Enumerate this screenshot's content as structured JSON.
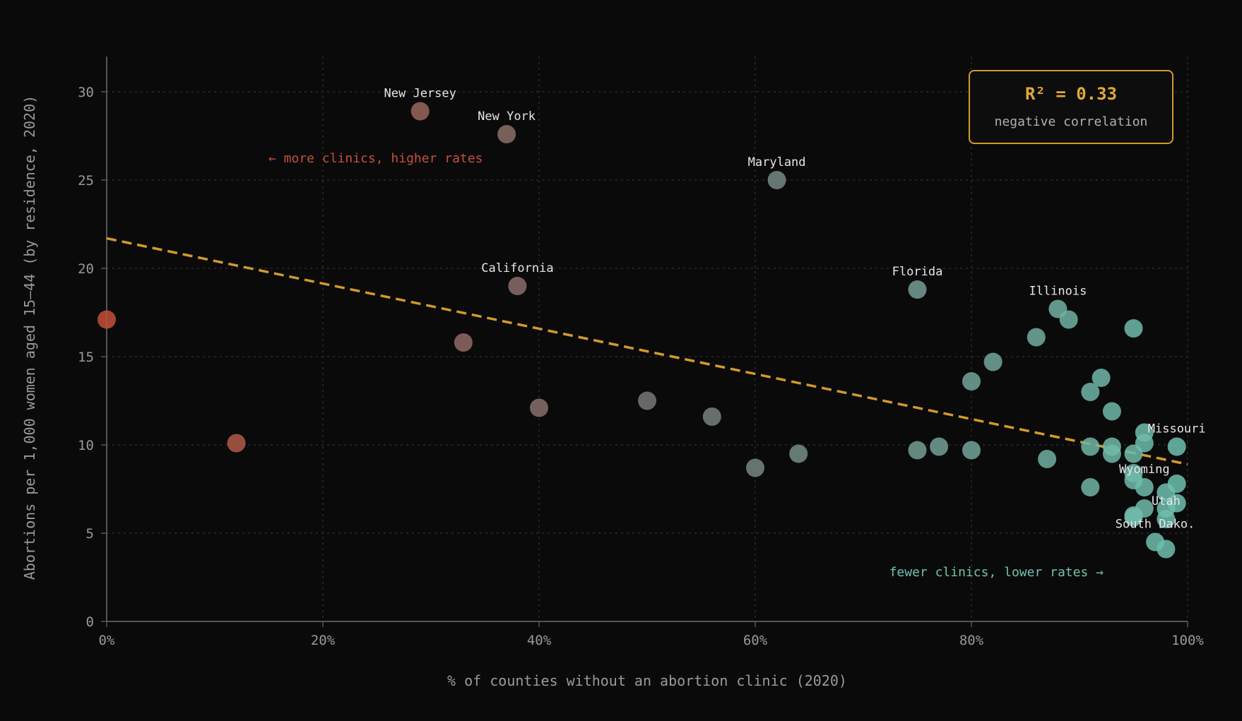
{
  "chart_data": {
    "type": "scatter",
    "xlabel": "% of counties without an abortion clinic (2020)",
    "ylabel": "Abortions per 1,000 women aged 15–44 (by residence, 2020)",
    "xlim": [
      0,
      100
    ],
    "ylim": [
      0,
      32
    ],
    "x_ticks": [
      0,
      20,
      40,
      60,
      80,
      100
    ],
    "x_tick_labels": [
      "0%",
      "20%",
      "40%",
      "60%",
      "80%",
      "100%"
    ],
    "y_ticks": [
      0,
      5,
      10,
      15,
      20,
      25,
      30
    ],
    "y_tick_labels": [
      "0",
      "5",
      "10",
      "15",
      "20",
      "25",
      "30"
    ],
    "grid": true,
    "trendline": {
      "x": [
        0,
        100
      ],
      "y": [
        21.7,
        8.9
      ]
    },
    "annotation_left": "← more clinics, higher rates",
    "annotation_right": "fewer clinics, lower rates →",
    "stats_box": {
      "r2_label": "R² = 0.33",
      "caption": "negative correlation",
      "position": "top-right"
    },
    "colors": {
      "background": "#0a0a0a",
      "axis": "#555555",
      "grid": "#2a2a2a",
      "tick_text": "#9a9a9a",
      "trend": "#d19a2e",
      "accent_left": "#c4503a",
      "accent_right": "#6fc2b0",
      "box_border": "#d19a2e",
      "box_title": "#e0a93a"
    },
    "points": [
      {
        "x": 0,
        "y": 17.1,
        "label": ""
      },
      {
        "x": 12,
        "y": 10.1,
        "label": ""
      },
      {
        "x": 29,
        "y": 28.9,
        "label": "New Jersey"
      },
      {
        "x": 37,
        "y": 27.6,
        "label": "New York"
      },
      {
        "x": 38,
        "y": 19.0,
        "label": "California"
      },
      {
        "x": 33,
        "y": 15.8,
        "label": ""
      },
      {
        "x": 40,
        "y": 12.1,
        "label": ""
      },
      {
        "x": 50,
        "y": 12.5,
        "label": ""
      },
      {
        "x": 56,
        "y": 11.6,
        "label": ""
      },
      {
        "x": 62,
        "y": 25.0,
        "label": "Maryland"
      },
      {
        "x": 60,
        "y": 8.7,
        "label": ""
      },
      {
        "x": 64,
        "y": 9.5,
        "label": ""
      },
      {
        "x": 75,
        "y": 18.8,
        "label": "Florida"
      },
      {
        "x": 75,
        "y": 9.7,
        "label": ""
      },
      {
        "x": 77,
        "y": 9.9,
        "label": ""
      },
      {
        "x": 80,
        "y": 9.7,
        "label": ""
      },
      {
        "x": 80,
        "y": 13.6,
        "label": ""
      },
      {
        "x": 82,
        "y": 14.7,
        "label": ""
      },
      {
        "x": 86,
        "y": 16.1,
        "label": ""
      },
      {
        "x": 87,
        "y": 9.2,
        "label": ""
      },
      {
        "x": 88,
        "y": 17.7,
        "label": "Illinois"
      },
      {
        "x": 89,
        "y": 17.1,
        "label": ""
      },
      {
        "x": 91,
        "y": 13.0,
        "label": ""
      },
      {
        "x": 92,
        "y": 13.8,
        "label": ""
      },
      {
        "x": 93,
        "y": 11.9,
        "label": ""
      },
      {
        "x": 91,
        "y": 9.9,
        "label": ""
      },
      {
        "x": 93,
        "y": 9.9,
        "label": ""
      },
      {
        "x": 93,
        "y": 9.5,
        "label": ""
      },
      {
        "x": 95,
        "y": 16.6,
        "label": ""
      },
      {
        "x": 95,
        "y": 9.5,
        "label": ""
      },
      {
        "x": 96,
        "y": 10.7,
        "label": ""
      },
      {
        "x": 96,
        "y": 10.1,
        "label": ""
      },
      {
        "x": 99,
        "y": 9.9,
        "label": "Missouri"
      },
      {
        "x": 91,
        "y": 7.6,
        "label": ""
      },
      {
        "x": 95,
        "y": 8.4,
        "label": ""
      },
      {
        "x": 95,
        "y": 8.0,
        "label": ""
      },
      {
        "x": 96,
        "y": 7.6,
        "label": "Wyoming"
      },
      {
        "x": 98,
        "y": 7.3,
        "label": ""
      },
      {
        "x": 99,
        "y": 7.8,
        "label": ""
      },
      {
        "x": 96,
        "y": 6.4,
        "label": ""
      },
      {
        "x": 98,
        "y": 6.4,
        "label": ""
      },
      {
        "x": 99,
        "y": 6.7,
        "label": ""
      },
      {
        "x": 95,
        "y": 6.0,
        "label": ""
      },
      {
        "x": 95,
        "y": 5.9,
        "label": ""
      },
      {
        "x": 98,
        "y": 5.8,
        "label": "Utah"
      },
      {
        "x": 97,
        "y": 4.5,
        "label": "South Dako."
      },
      {
        "x": 98,
        "y": 4.1,
        "label": ""
      }
    ]
  }
}
